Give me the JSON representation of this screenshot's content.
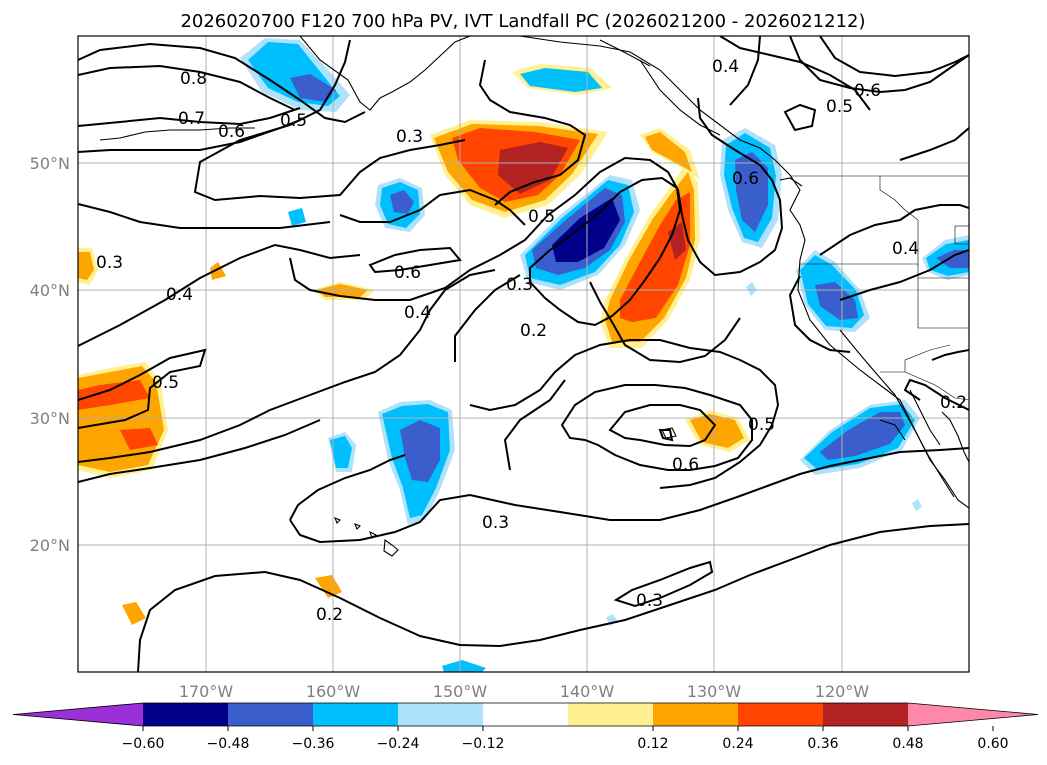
{
  "title": "2026020700 F120 700 hPa PV, IVT Landfall PC (2026021200 - 2026021212)",
  "map": {
    "lon_labels": [
      "170°W",
      "160°W",
      "150°W",
      "140°W",
      "130°W",
      "120°W"
    ],
    "lat_labels": [
      "50°N",
      "40°N",
      "30°N",
      "20°N"
    ],
    "contour_labels": [
      {
        "text": "0.8"
      },
      {
        "text": "0.7"
      },
      {
        "text": "0.6"
      },
      {
        "text": "0.5"
      },
      {
        "text": "0.3"
      },
      {
        "text": "0.4"
      },
      {
        "text": "0.5"
      },
      {
        "text": "0.6"
      },
      {
        "text": "0.5"
      },
      {
        "text": "0.6"
      },
      {
        "text": "0.4"
      },
      {
        "text": "0.6"
      },
      {
        "text": "0.3"
      },
      {
        "text": "0.2"
      },
      {
        "text": "0.3"
      },
      {
        "text": "0.4"
      },
      {
        "text": "0.5"
      },
      {
        "text": "0.5"
      },
      {
        "text": "0.6"
      },
      {
        "text": "0.3"
      },
      {
        "text": "0.3"
      },
      {
        "text": "0.2"
      },
      {
        "text": "0.4"
      },
      {
        "text": "0.2"
      }
    ]
  },
  "colorbar": {
    "ticks": [
      "−0.60",
      "−0.48",
      "−0.36",
      "−0.24",
      "−0.12",
      "0.12",
      "0.24",
      "0.36",
      "0.48",
      "0.60"
    ],
    "colors": [
      "#9b30d9",
      "#00008b",
      "#3a5fcd",
      "#00bfff",
      "#aee2fa",
      "#ffffff",
      "#fff091",
      "#ffa500",
      "#ff4500",
      "#b22222",
      "#ff88aa"
    ]
  }
}
